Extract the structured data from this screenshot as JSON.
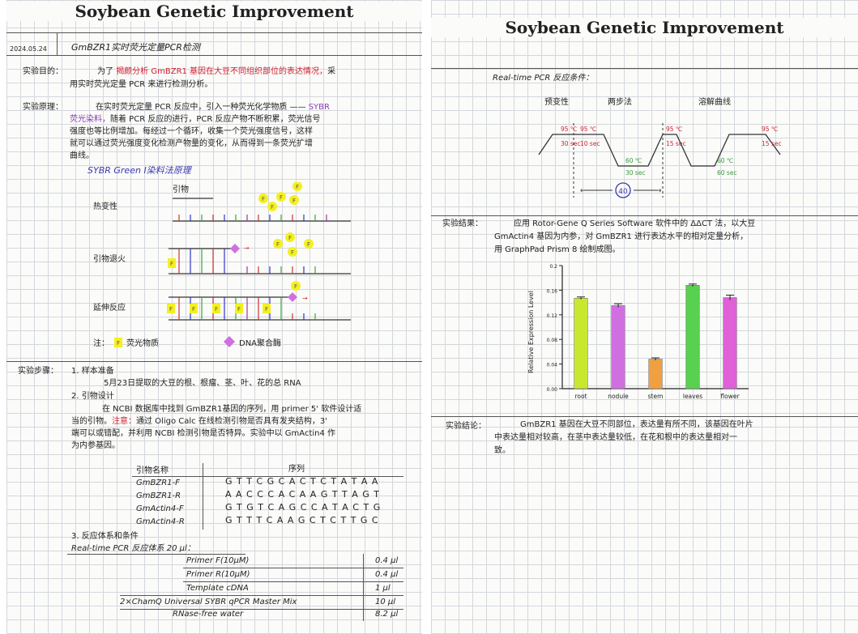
{
  "left_page": {
    "title": "Soybean Genetic Improvement",
    "date": "2024.05.24",
    "experiment_name": "GmBZR1实时荧光定量PCR检测",
    "purpose": {
      "label": "实验目的：",
      "prefix": "为了",
      "highlight": "揭颇分析 GmBZR1 基因在大豆不同组织部位的表达情况，",
      "suffix": "采",
      "line2": "用实时荧光定量 PCR 来进行检测分析。"
    },
    "principle": {
      "label": "实验原理：",
      "line1_prefix": "在实时荧光定量 PCR 反应中，引入一种荧光化学物质 ——",
      "line1_highlight": "SYBR",
      "line2_highlight": "荧光染料，",
      "line2_rest": "随着 PCR 反应的进行，PCR 反应产物不断积累，荧光信号",
      "line3": "强度也等比例增加。每经过一个循环，收集一个荧光强度信号，这样",
      "line4": "就可以通过荧光强度变化检测产物量的变化，从而得到一条荧光扩增",
      "line5": "曲线。",
      "subtitle": "SYBR Green I染料法原理",
      "primer_label": "引物",
      "step_denature": "热变性",
      "step_anneal": "引物退火",
      "step_extend": "延伸反应",
      "note_label": "注：",
      "note_fluor": "荧光物质",
      "note_poly": "DNA聚合酶",
      "fluor_letter": "F"
    },
    "steps": {
      "label": "实验步骤：",
      "s1_title": "1. 样本准备",
      "s1_text": "5月23日提取的大豆的根、根瘤、茎、叶、花的总 RNA",
      "s2_title": "2. 引物设计",
      "s2_line1": "在 NCBI 数据库中找到 GmBZR1基因的序列，用 primer 5' 软件设计适",
      "s2_line2": "当的引物。",
      "s2_note": "注意：",
      "s2_line2b": "通过 Oligo Calc 在线检测引物是否具有发夹结构，3'",
      "s2_line3": "端可以或错配，并利用 NCBI 检测引物是否特异。实验中以 GmActin4 作",
      "s2_line4": "为内参基因。",
      "s3_title": "3. 反应体系和条件",
      "reaction_title": "Real-time PCR 反应体系 20 μl："
    },
    "primer_table": {
      "headers": [
        "引物名称",
        "序列"
      ],
      "rows": [
        {
          "name": "GmBZR1-F",
          "seq": "G T T C G C A C T C T A T A A"
        },
        {
          "name": "GmBZR1-R",
          "seq": "A A C C C A C A A G T T A G T"
        },
        {
          "name": "GmActin4-F",
          "seq": "G T G T C A G C C A T A C T G"
        },
        {
          "name": "GmActin4-R",
          "seq": "G T T T C A A G C T C T T G C"
        }
      ]
    },
    "reaction_table": {
      "rows": [
        {
          "name": "Primer F(10μM)",
          "vol": "0.4 μl"
        },
        {
          "name": "Primer R(10μM)",
          "vol": "0.4 μl"
        },
        {
          "name": "Template cDNA",
          "vol": "1 μl"
        },
        {
          "name": "2×ChamQ Universal SYBR qPCR Master Mix",
          "vol": "10 μl"
        },
        {
          "name": "RNase-free water",
          "vol": "8.2 μl"
        }
      ]
    }
  },
  "right_page": {
    "title": "Soybean Genetic Improvement",
    "conditions": {
      "title": "Real-time PCR 反应条件：",
      "stage1": "预变性",
      "stage2": "两步法",
      "stage3": "溶解曲线",
      "t1": "95 ℃",
      "d1": "30 sec",
      "t2": "95 ℃",
      "d2": "10 sec",
      "t3": "60 ℃",
      "d3": "30 sec",
      "t4": "95 ℃",
      "d4": "15 sec",
      "t5": "60 ℃",
      "d5": "60 sec",
      "t6": "95 ℃",
      "d6": "15 sec",
      "cycles": "40"
    },
    "results": {
      "label": "实验结果：",
      "line1": "应用 Rotor-Gene Q Series Software 软件中的 ΔΔCT 法，以大豆",
      "line2": "GmActin4 基因为内参，对 GmBZR1 进行表达水平的相对定量分析，",
      "line3": "用 GraphPad Prism 8 绘制成图。"
    },
    "conclusion": {
      "label": "实验结论：",
      "line1": "GmBZR1 基因在大豆不同部位，表达量有所不同，该基因在叶片",
      "line2": "中表达量相对较高，在茎中表达量较低，在花和根中的表达量相对一",
      "line3": "致。"
    }
  },
  "chart_data": {
    "type": "bar",
    "title": "",
    "xlabel": "",
    "ylabel": "Relative Expression Level",
    "ylim": [
      0,
      0.2
    ],
    "yticks": [
      "0.00",
      "0.04",
      "0.08",
      "0.12",
      "0.16",
      "0.2"
    ],
    "categories": [
      "root",
      "nodule",
      "stem",
      "leaves",
      "flower"
    ],
    "values": [
      0.147,
      0.135,
      0.048,
      0.168,
      0.148
    ],
    "errors": [
      0.002,
      0.003,
      0.002,
      0.002,
      0.004
    ],
    "colors": [
      "#c8e830",
      "#d070e0",
      "#f0a040",
      "#58d050",
      "#e060d8"
    ],
    "grid": false
  }
}
